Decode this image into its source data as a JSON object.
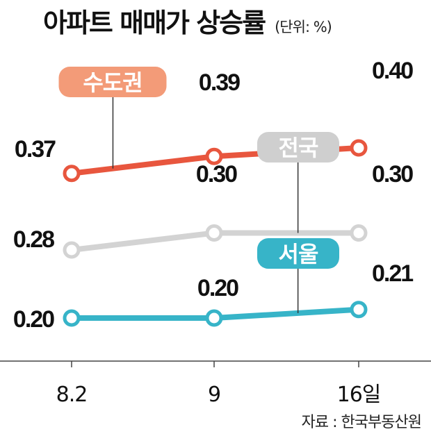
{
  "title": "아파트 매매가 상승률",
  "unit_note": "(단위: %)",
  "source": "자료 : 한국부동산원",
  "chart_data": {
    "type": "line",
    "categories": [
      "8.2",
      "9",
      "16일"
    ],
    "ylim": [
      0.15,
      0.42
    ],
    "grid": false,
    "legend": "labels on lines",
    "series": [
      {
        "name": "수도권",
        "values": [
          0.37,
          0.39,
          0.4
        ],
        "labels": [
          "0.37",
          "0.39",
          "0.40"
        ],
        "color": "#e8563e",
        "badge_color": "#f39b78"
      },
      {
        "name": "전국",
        "values": [
          0.28,
          0.3,
          0.3
        ],
        "labels": [
          "0.28",
          "0.30",
          "0.30"
        ],
        "color": "#d3d3d3",
        "badge_color": "#cfcfcf"
      },
      {
        "name": "서울",
        "values": [
          0.2,
          0.2,
          0.21
        ],
        "labels": [
          "0.20",
          "0.20",
          "0.21"
        ],
        "color": "#37b4c8",
        "badge_color": "#37b4c8"
      }
    ]
  }
}
